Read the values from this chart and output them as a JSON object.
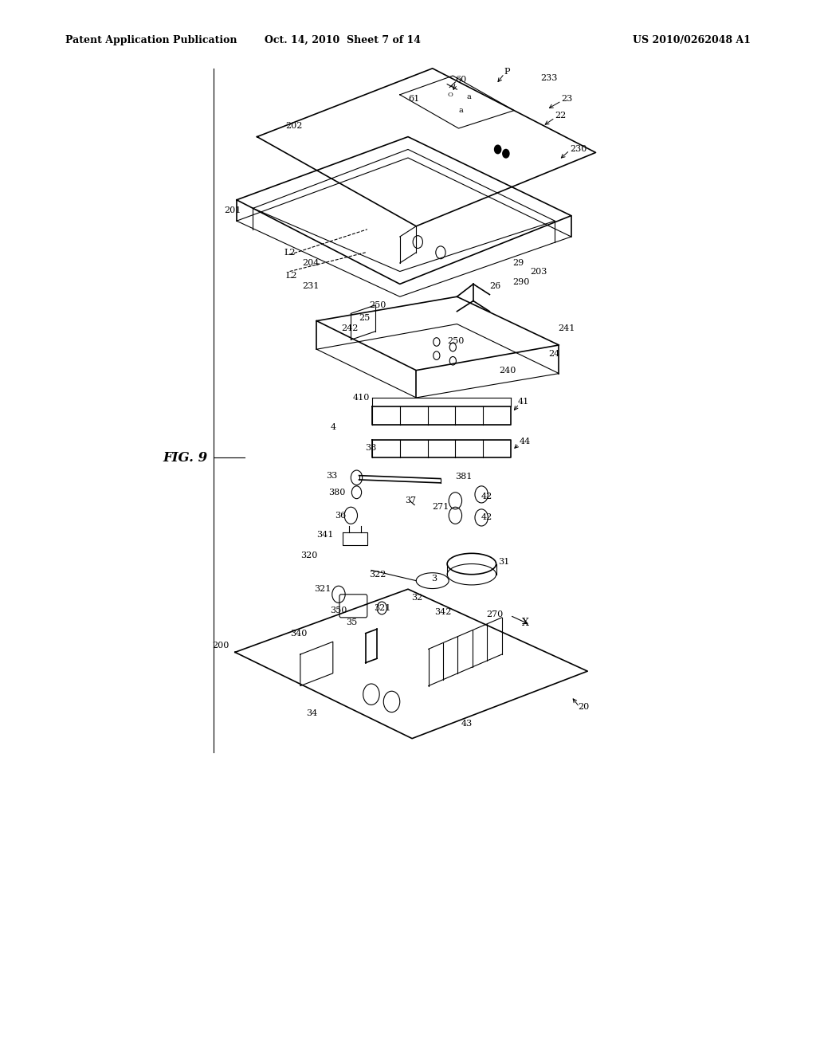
{
  "bg_color": "#ffffff",
  "line_color": "#000000",
  "header_left": "Patent Application Publication",
  "header_center": "Oct. 14, 2010  Sheet 7 of 14",
  "header_right": "US 2010/0262048 A1",
  "figure_label": "FIG. 9"
}
